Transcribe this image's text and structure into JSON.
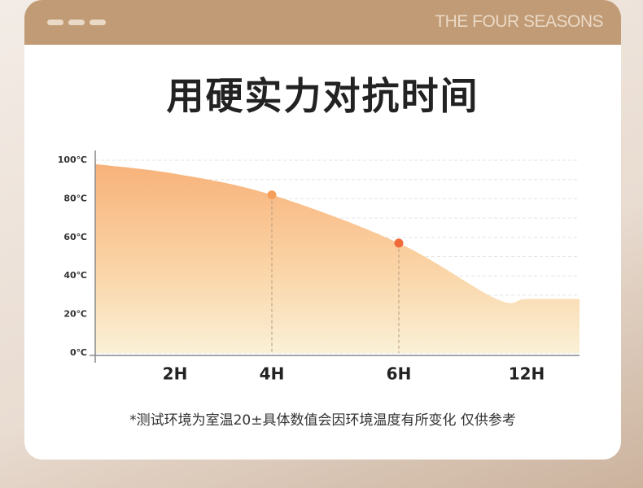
{
  "header": {
    "brand": "THE FOUR SEASONS"
  },
  "title": "用硬实力对抗时间",
  "chart_data": {
    "type": "area",
    "categories": [
      null,
      "2H",
      "4H",
      "6H",
      null,
      "12H",
      null
    ],
    "values": [
      98,
      93,
      82,
      57,
      28,
      28,
      28
    ],
    "marker_colors": [
      null,
      null,
      "#f5a05a",
      "#f06a3a",
      null,
      null,
      null
    ],
    "ylim": [
      0,
      100
    ],
    "yticks": [
      {
        "value": 0,
        "label": "0℃"
      },
      {
        "value": 20,
        "label": "20℃"
      },
      {
        "value": 40,
        "label": "40℃"
      },
      {
        "value": 60,
        "label": "60℃"
      },
      {
        "value": 80,
        "label": "80℃"
      },
      {
        "value": 100,
        "label": "100℃"
      }
    ],
    "yminor": [
      10,
      30,
      50,
      70,
      90
    ],
    "grid": true
  },
  "footnote": "*测试环境为室温20±具体数值会因环境温度有所变化 仅供参考"
}
